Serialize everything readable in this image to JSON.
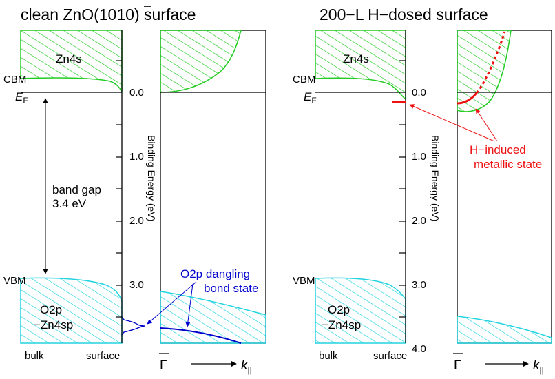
{
  "left_panel": {
    "title": "clean ZnO(10",
    "title_bar_digit": "1",
    "title_tail": "0) surface",
    "cbm": "CBM",
    "ef": "E",
    "ef_sub": "F",
    "band_gap": "band gap",
    "band_gap_value": "3.4 eV",
    "vbm": "VBM",
    "zn4s": "Zn4s",
    "o2p_line1": "O2p",
    "o2p_line2": "−Zn4sp",
    "bulk": "bulk",
    "surface": "surface",
    "dangling_line1": "O2p dangling",
    "dangling_line2": "bond state",
    "gamma": "Γ",
    "k": "k",
    "k_sub": "||"
  },
  "right_panel": {
    "title": "200−L H−dosed surface",
    "cbm": "CBM",
    "ef": "E",
    "ef_sub": "F",
    "vbm": "VBM",
    "zn4s": "Zn4s",
    "o2p_line1": "O2p",
    "o2p_line2": "−Zn4sp",
    "bulk": "bulk",
    "surface": "surface",
    "h_state_line1": "H−induced",
    "h_state_line2": "metallic state",
    "gamma": "Γ",
    "k": "k",
    "k_sub": "||"
  },
  "axis": {
    "label": "Binding Energy (eV)",
    "ticks_left": [
      "0.0",
      "1.0",
      "2.0",
      "3.0"
    ],
    "ticks_right": [
      "0.0",
      "1.0",
      "2.0",
      "3.0",
      "4.0"
    ]
  },
  "colors": {
    "conduction_band": "#22cc22",
    "valence_band": "#22d3e0",
    "dangling_state": "#0000cc",
    "h_state": "#ee1111",
    "line": "#000000"
  }
}
